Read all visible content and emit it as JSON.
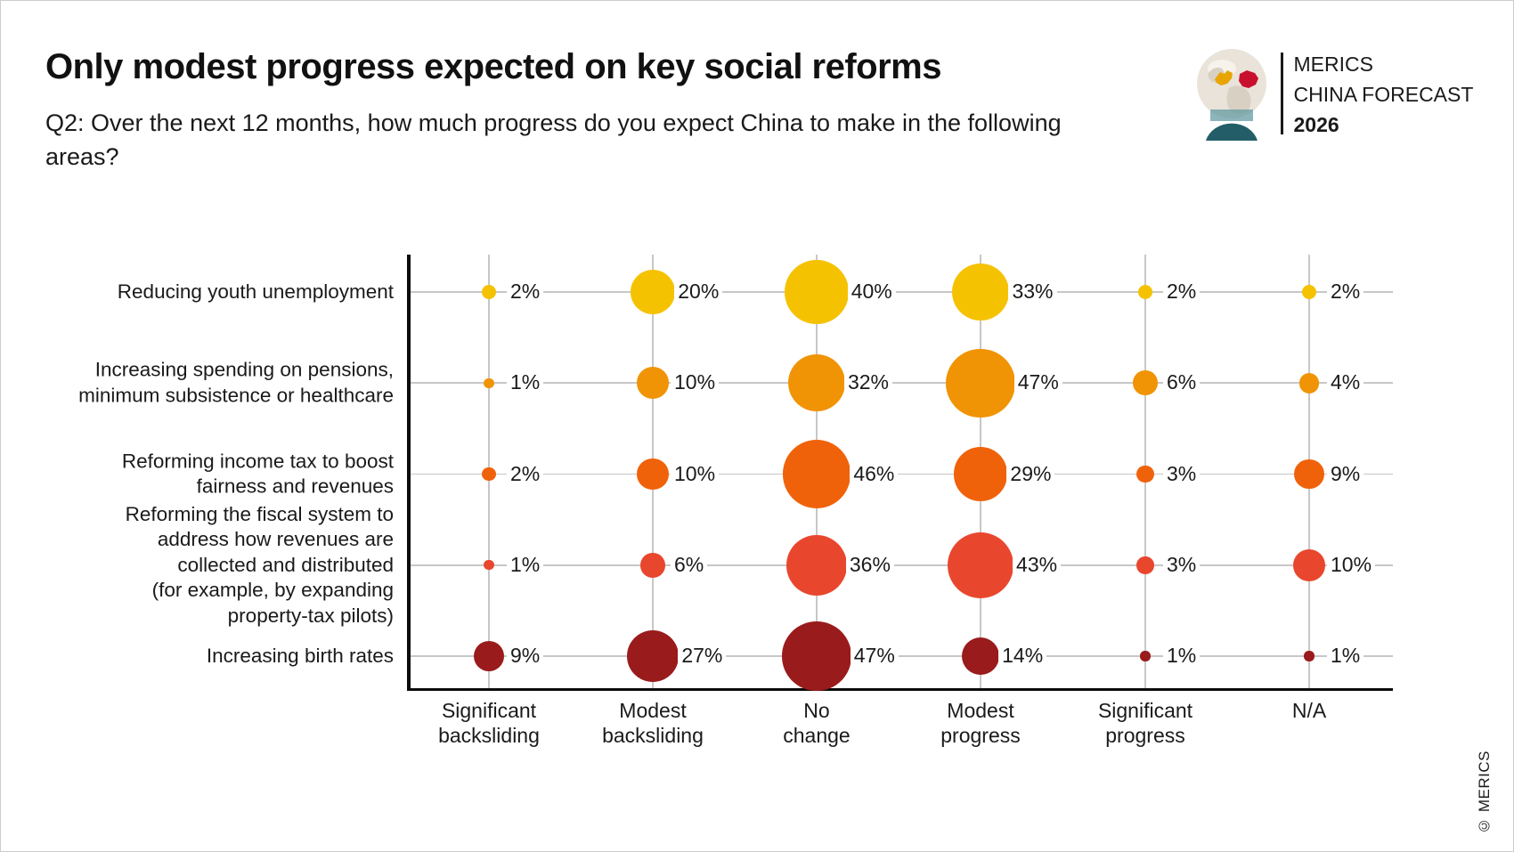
{
  "header": {
    "title": "Only modest progress expected on key social reforms",
    "subtitle": "Q2: Over the next 12 months, how much progress do you expect China to make in the following areas?"
  },
  "logo": {
    "org": "MERICS",
    "product": "CHINA FORECAST",
    "year": "2026",
    "globe_color": "#E9E3DA",
    "europe_color": "#E8A400",
    "china_color": "#C8102E",
    "base_color": "#235E68"
  },
  "footer": {
    "copyright": "© MERICS"
  },
  "chart_data": {
    "type": "bubble",
    "unit": "%",
    "grid": true,
    "bubble_scale": "radius proportional to sqrt(value)",
    "x_categories": [
      "Significant backsliding",
      "Modest backsliding",
      "No change",
      "Modest progress",
      "Significant progress",
      "N/A"
    ],
    "rows": [
      {
        "label": "Reducing youth unemployment",
        "label_lines": [
          "Reducing youth unemployment"
        ],
        "color": "#F5C202",
        "values": [
          2,
          20,
          40,
          33,
          2,
          2
        ]
      },
      {
        "label": "Increasing spending on pensions, minimum subsistence or healthcare",
        "label_lines": [
          "Increasing spending on pensions,",
          "minimum subsistence or healthcare"
        ],
        "color": "#F09405",
        "values": [
          1,
          10,
          32,
          47,
          6,
          4
        ]
      },
      {
        "label": "Reforming income tax to boost fairness and revenues",
        "label_lines": [
          "Reforming income tax to boost",
          "fairness and revenues"
        ],
        "color": "#F0620A",
        "values": [
          2,
          10,
          46,
          29,
          3,
          9
        ]
      },
      {
        "label": "Reforming the fiscal system to address how revenues are collected and distributed (for example, by expanding property-tax pilots)",
        "label_lines": [
          "Reforming the fiscal system to",
          "address how revenues are",
          "collected and distributed",
          "(for example, by expanding",
          "property-tax pilots)"
        ],
        "color": "#E8472E",
        "values": [
          1,
          6,
          36,
          43,
          3,
          10
        ]
      },
      {
        "label": "Increasing birth rates",
        "label_lines": [
          "Increasing birth rates"
        ],
        "color": "#9A1B1C",
        "values": [
          9,
          27,
          47,
          14,
          1,
          1
        ]
      }
    ]
  }
}
